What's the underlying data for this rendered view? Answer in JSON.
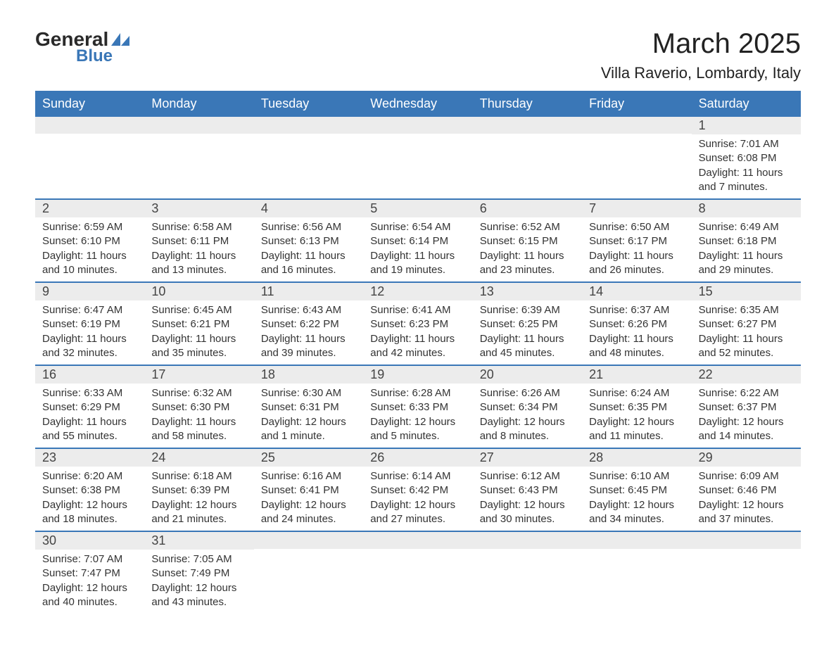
{
  "logo": {
    "text_general": "General",
    "text_blue": "Blue",
    "icon_color": "#3a77b7"
  },
  "title": "March 2025",
  "location": "Villa Raverio, Lombardy, Italy",
  "colors": {
    "header_bg": "#3a77b7",
    "header_text": "#ffffff",
    "daynum_bg": "#ececec",
    "row_border": "#3a77b7",
    "body_text": "#333333"
  },
  "weekdays": [
    "Sunday",
    "Monday",
    "Tuesday",
    "Wednesday",
    "Thursday",
    "Friday",
    "Saturday"
  ],
  "weeks": [
    [
      {
        "day": "",
        "sunrise": "",
        "sunset": "",
        "daylight1": "",
        "daylight2": ""
      },
      {
        "day": "",
        "sunrise": "",
        "sunset": "",
        "daylight1": "",
        "daylight2": ""
      },
      {
        "day": "",
        "sunrise": "",
        "sunset": "",
        "daylight1": "",
        "daylight2": ""
      },
      {
        "day": "",
        "sunrise": "",
        "sunset": "",
        "daylight1": "",
        "daylight2": ""
      },
      {
        "day": "",
        "sunrise": "",
        "sunset": "",
        "daylight1": "",
        "daylight2": ""
      },
      {
        "day": "",
        "sunrise": "",
        "sunset": "",
        "daylight1": "",
        "daylight2": ""
      },
      {
        "day": "1",
        "sunrise": "Sunrise: 7:01 AM",
        "sunset": "Sunset: 6:08 PM",
        "daylight1": "Daylight: 11 hours",
        "daylight2": "and 7 minutes."
      }
    ],
    [
      {
        "day": "2",
        "sunrise": "Sunrise: 6:59 AM",
        "sunset": "Sunset: 6:10 PM",
        "daylight1": "Daylight: 11 hours",
        "daylight2": "and 10 minutes."
      },
      {
        "day": "3",
        "sunrise": "Sunrise: 6:58 AM",
        "sunset": "Sunset: 6:11 PM",
        "daylight1": "Daylight: 11 hours",
        "daylight2": "and 13 minutes."
      },
      {
        "day": "4",
        "sunrise": "Sunrise: 6:56 AM",
        "sunset": "Sunset: 6:13 PM",
        "daylight1": "Daylight: 11 hours",
        "daylight2": "and 16 minutes."
      },
      {
        "day": "5",
        "sunrise": "Sunrise: 6:54 AM",
        "sunset": "Sunset: 6:14 PM",
        "daylight1": "Daylight: 11 hours",
        "daylight2": "and 19 minutes."
      },
      {
        "day": "6",
        "sunrise": "Sunrise: 6:52 AM",
        "sunset": "Sunset: 6:15 PM",
        "daylight1": "Daylight: 11 hours",
        "daylight2": "and 23 minutes."
      },
      {
        "day": "7",
        "sunrise": "Sunrise: 6:50 AM",
        "sunset": "Sunset: 6:17 PM",
        "daylight1": "Daylight: 11 hours",
        "daylight2": "and 26 minutes."
      },
      {
        "day": "8",
        "sunrise": "Sunrise: 6:49 AM",
        "sunset": "Sunset: 6:18 PM",
        "daylight1": "Daylight: 11 hours",
        "daylight2": "and 29 minutes."
      }
    ],
    [
      {
        "day": "9",
        "sunrise": "Sunrise: 6:47 AM",
        "sunset": "Sunset: 6:19 PM",
        "daylight1": "Daylight: 11 hours",
        "daylight2": "and 32 minutes."
      },
      {
        "day": "10",
        "sunrise": "Sunrise: 6:45 AM",
        "sunset": "Sunset: 6:21 PM",
        "daylight1": "Daylight: 11 hours",
        "daylight2": "and 35 minutes."
      },
      {
        "day": "11",
        "sunrise": "Sunrise: 6:43 AM",
        "sunset": "Sunset: 6:22 PM",
        "daylight1": "Daylight: 11 hours",
        "daylight2": "and 39 minutes."
      },
      {
        "day": "12",
        "sunrise": "Sunrise: 6:41 AM",
        "sunset": "Sunset: 6:23 PM",
        "daylight1": "Daylight: 11 hours",
        "daylight2": "and 42 minutes."
      },
      {
        "day": "13",
        "sunrise": "Sunrise: 6:39 AM",
        "sunset": "Sunset: 6:25 PM",
        "daylight1": "Daylight: 11 hours",
        "daylight2": "and 45 minutes."
      },
      {
        "day": "14",
        "sunrise": "Sunrise: 6:37 AM",
        "sunset": "Sunset: 6:26 PM",
        "daylight1": "Daylight: 11 hours",
        "daylight2": "and 48 minutes."
      },
      {
        "day": "15",
        "sunrise": "Sunrise: 6:35 AM",
        "sunset": "Sunset: 6:27 PM",
        "daylight1": "Daylight: 11 hours",
        "daylight2": "and 52 minutes."
      }
    ],
    [
      {
        "day": "16",
        "sunrise": "Sunrise: 6:33 AM",
        "sunset": "Sunset: 6:29 PM",
        "daylight1": "Daylight: 11 hours",
        "daylight2": "and 55 minutes."
      },
      {
        "day": "17",
        "sunrise": "Sunrise: 6:32 AM",
        "sunset": "Sunset: 6:30 PM",
        "daylight1": "Daylight: 11 hours",
        "daylight2": "and 58 minutes."
      },
      {
        "day": "18",
        "sunrise": "Sunrise: 6:30 AM",
        "sunset": "Sunset: 6:31 PM",
        "daylight1": "Daylight: 12 hours",
        "daylight2": "and 1 minute."
      },
      {
        "day": "19",
        "sunrise": "Sunrise: 6:28 AM",
        "sunset": "Sunset: 6:33 PM",
        "daylight1": "Daylight: 12 hours",
        "daylight2": "and 5 minutes."
      },
      {
        "day": "20",
        "sunrise": "Sunrise: 6:26 AM",
        "sunset": "Sunset: 6:34 PM",
        "daylight1": "Daylight: 12 hours",
        "daylight2": "and 8 minutes."
      },
      {
        "day": "21",
        "sunrise": "Sunrise: 6:24 AM",
        "sunset": "Sunset: 6:35 PM",
        "daylight1": "Daylight: 12 hours",
        "daylight2": "and 11 minutes."
      },
      {
        "day": "22",
        "sunrise": "Sunrise: 6:22 AM",
        "sunset": "Sunset: 6:37 PM",
        "daylight1": "Daylight: 12 hours",
        "daylight2": "and 14 minutes."
      }
    ],
    [
      {
        "day": "23",
        "sunrise": "Sunrise: 6:20 AM",
        "sunset": "Sunset: 6:38 PM",
        "daylight1": "Daylight: 12 hours",
        "daylight2": "and 18 minutes."
      },
      {
        "day": "24",
        "sunrise": "Sunrise: 6:18 AM",
        "sunset": "Sunset: 6:39 PM",
        "daylight1": "Daylight: 12 hours",
        "daylight2": "and 21 minutes."
      },
      {
        "day": "25",
        "sunrise": "Sunrise: 6:16 AM",
        "sunset": "Sunset: 6:41 PM",
        "daylight1": "Daylight: 12 hours",
        "daylight2": "and 24 minutes."
      },
      {
        "day": "26",
        "sunrise": "Sunrise: 6:14 AM",
        "sunset": "Sunset: 6:42 PM",
        "daylight1": "Daylight: 12 hours",
        "daylight2": "and 27 minutes."
      },
      {
        "day": "27",
        "sunrise": "Sunrise: 6:12 AM",
        "sunset": "Sunset: 6:43 PM",
        "daylight1": "Daylight: 12 hours",
        "daylight2": "and 30 minutes."
      },
      {
        "day": "28",
        "sunrise": "Sunrise: 6:10 AM",
        "sunset": "Sunset: 6:45 PM",
        "daylight1": "Daylight: 12 hours",
        "daylight2": "and 34 minutes."
      },
      {
        "day": "29",
        "sunrise": "Sunrise: 6:09 AM",
        "sunset": "Sunset: 6:46 PM",
        "daylight1": "Daylight: 12 hours",
        "daylight2": "and 37 minutes."
      }
    ],
    [
      {
        "day": "30",
        "sunrise": "Sunrise: 7:07 AM",
        "sunset": "Sunset: 7:47 PM",
        "daylight1": "Daylight: 12 hours",
        "daylight2": "and 40 minutes."
      },
      {
        "day": "31",
        "sunrise": "Sunrise: 7:05 AM",
        "sunset": "Sunset: 7:49 PM",
        "daylight1": "Daylight: 12 hours",
        "daylight2": "and 43 minutes."
      },
      {
        "day": "",
        "sunrise": "",
        "sunset": "",
        "daylight1": "",
        "daylight2": ""
      },
      {
        "day": "",
        "sunrise": "",
        "sunset": "",
        "daylight1": "",
        "daylight2": ""
      },
      {
        "day": "",
        "sunrise": "",
        "sunset": "",
        "daylight1": "",
        "daylight2": ""
      },
      {
        "day": "",
        "sunrise": "",
        "sunset": "",
        "daylight1": "",
        "daylight2": ""
      },
      {
        "day": "",
        "sunrise": "",
        "sunset": "",
        "daylight1": "",
        "daylight2": ""
      }
    ]
  ]
}
